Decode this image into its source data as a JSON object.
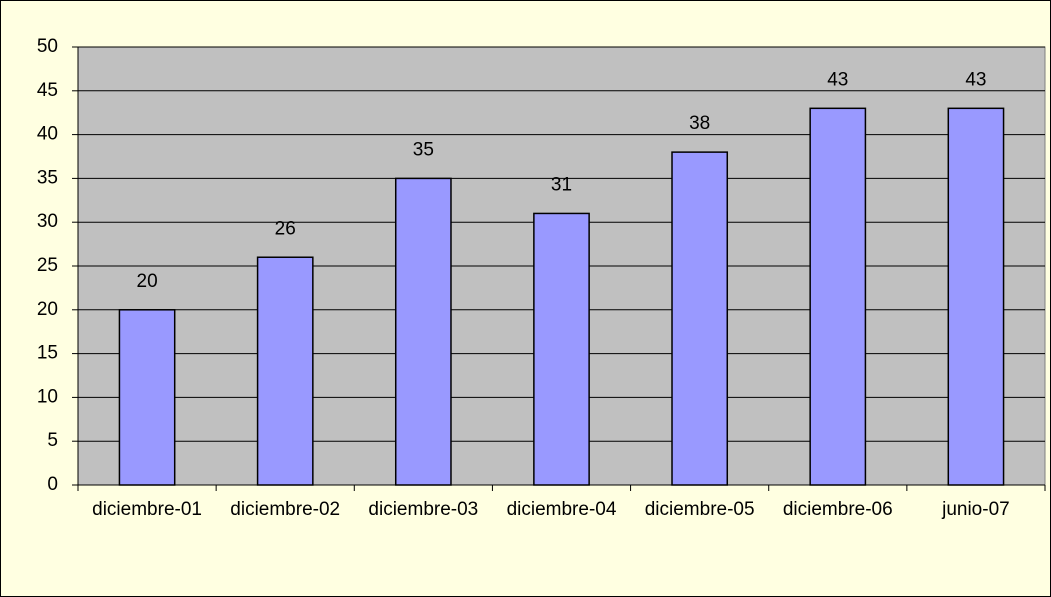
{
  "chart_data": {
    "type": "bar",
    "categories": [
      "diciembre-01",
      "diciembre-02",
      "diciembre-03",
      "diciembre-04",
      "diciembre-05",
      "diciembre-06",
      "junio-07"
    ],
    "values": [
      20,
      26,
      35,
      31,
      38,
      43,
      43
    ],
    "color": "#9999ff",
    "ylim": [
      0,
      50
    ],
    "yticks": [
      0,
      5,
      10,
      15,
      20,
      25,
      30,
      35,
      40,
      45,
      50
    ],
    "grid": true
  }
}
